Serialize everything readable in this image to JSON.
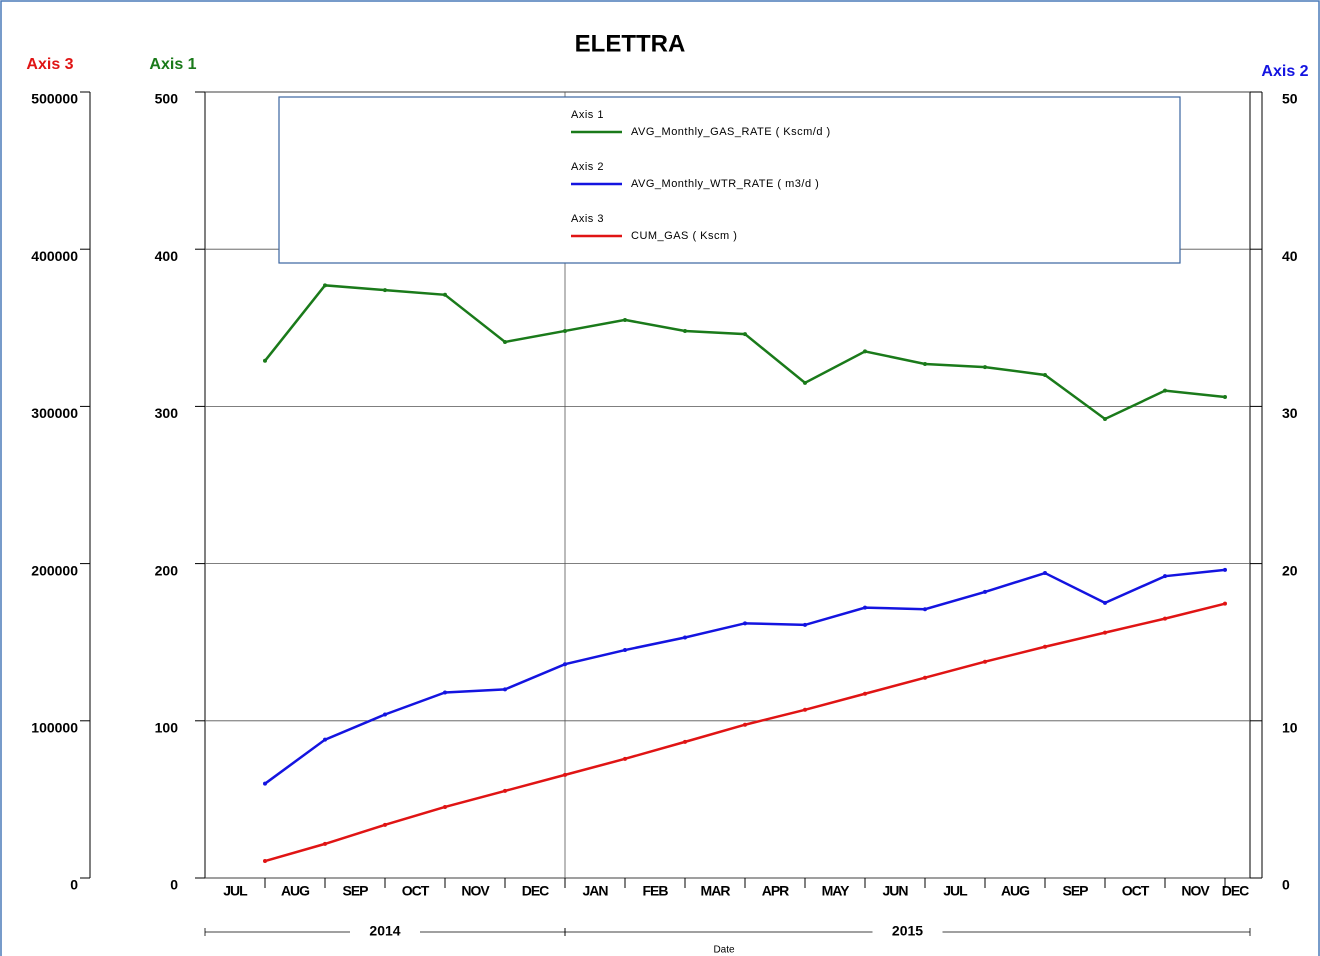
{
  "chart_data": {
    "type": "line",
    "title": "ELETTRA",
    "x_label": "Date",
    "categories": [
      "JUL",
      "AUG",
      "SEP",
      "OCT",
      "NOV",
      "DEC",
      "JAN",
      "FEB",
      "MAR",
      "APR",
      "MAY",
      "JUN",
      "JUL",
      "AUG",
      "SEP",
      "OCT",
      "NOV",
      "DEC"
    ],
    "years": [
      "2014",
      "2015"
    ],
    "y_axis_title": "Axis 1",
    "y2_axis_title": "Axis 2",
    "y3_axis_title": "Axis 3",
    "ylim": [
      0,
      500
    ],
    "yticks": [
      0,
      100,
      200,
      300,
      400,
      500
    ],
    "y2lim": [
      0,
      50
    ],
    "y2ticks": [
      0,
      10,
      20,
      30,
      40,
      50
    ],
    "y3lim": [
      0,
      500000
    ],
    "y3ticks": [
      0,
      100000,
      200000,
      300000,
      400000,
      500000
    ],
    "grid": true,
    "series": [
      {
        "name": "AVG_Monthly_GAS_RATE ( Kscm/d )",
        "color": "#1a7a1a",
        "axis": "y",
        "values": [
          null,
          329,
          377,
          374,
          371,
          341,
          348,
          355,
          348,
          346,
          315,
          335,
          327,
          325,
          320,
          292,
          310,
          306
        ]
      },
      {
        "name": "AVG_Monthly_WTR_RATE ( m3/d )",
        "color": "#1414e0",
        "axis": "y2",
        "values": [
          null,
          6.0,
          8.8,
          10.4,
          11.8,
          12.0,
          13.6,
          14.5,
          15.3,
          16.2,
          16.1,
          17.2,
          17.1,
          18.2,
          19.4,
          17.5,
          19.2,
          19.6
        ]
      },
      {
        "name": "CUM_GAS ( Kscm )",
        "color": "#e01414",
        "axis": "y3",
        "values": [
          null,
          10800,
          21700,
          33800,
          45200,
          55400,
          65600,
          75800,
          86600,
          97500,
          107000,
          117200,
          127400,
          137600,
          147100,
          156100,
          165000,
          174500
        ]
      }
    ]
  }
}
